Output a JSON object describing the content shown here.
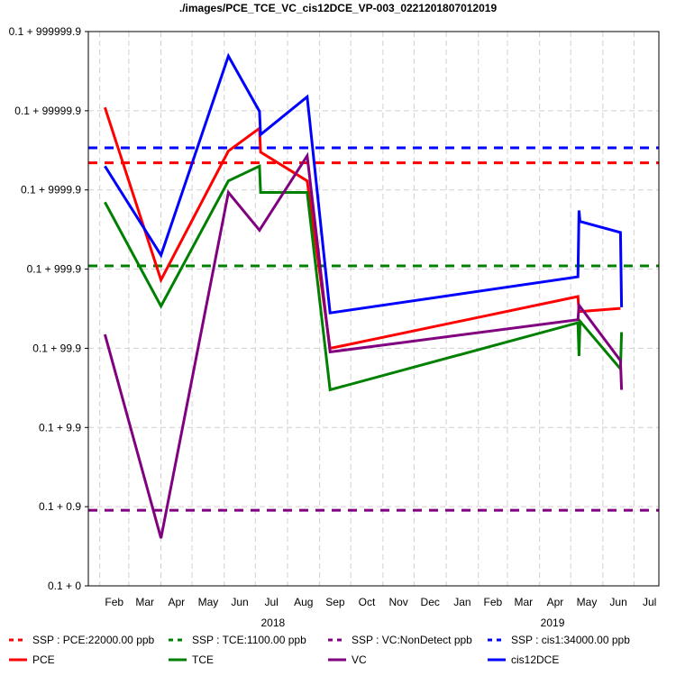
{
  "chart_data": {
    "type": "line",
    "title": "./images/PCE_TCE_VC_cis12DCE_VP-003_0221201807012019",
    "xlabel": "",
    "ylabel": "",
    "y_scale": "log10(value - 0.1)",
    "y_ticks": [
      "0.1 + 0",
      "0.1 + 0.9",
      "0.1 + 9.9",
      "0.1 + 99.9",
      "0.1 + 999.9",
      "0.1 + 9999.9",
      "0.1 + 99999.9",
      "0.1 + 999999.9"
    ],
    "x_ticks": [
      "Feb",
      "Mar",
      "Apr",
      "May",
      "Jun",
      "Jul",
      "Aug",
      "Sep",
      "Oct",
      "Nov",
      "Dec",
      "Jan",
      "Feb",
      "Mar",
      "Apr",
      "May",
      "Jun",
      "Jul"
    ],
    "x_year_labels": [
      "2018",
      "2019"
    ],
    "x_range": [
      "2018-01-21",
      "2019-07-25"
    ],
    "grid": true,
    "legend_position": "bottom",
    "reference_lines": [
      {
        "name": "SSP : PCE:22000.00 ppb",
        "value": 22000,
        "color": "#ff0000",
        "style": "dashed"
      },
      {
        "name": "SSP : TCE:1100.00 ppb",
        "value": 1100,
        "color": "#008000",
        "style": "dashed"
      },
      {
        "name": "SSP : VC:NonDetect ppb",
        "value": 1,
        "color": "#800080",
        "style": "dashed"
      },
      {
        "name": "SSP : cis1:34000.00 ppb",
        "value": 34000,
        "color": "#0000ff",
        "style": "dashed"
      }
    ],
    "series": [
      {
        "name": "PCE",
        "color": "#ff0000",
        "points": [
          [
            "2018-02-06",
            110000
          ],
          [
            "2018-04-01",
            730
          ],
          [
            "2018-06-05",
            31000
          ],
          [
            "2018-07-05",
            60000
          ],
          [
            "2018-07-06",
            30000
          ],
          [
            "2018-08-20",
            13000
          ],
          [
            "2018-09-11",
            100
          ],
          [
            "2019-05-08",
            450
          ],
          [
            "2019-05-09",
            290
          ],
          [
            "2019-06-18",
            320
          ]
        ]
      },
      {
        "name": "TCE",
        "color": "#008000",
        "points": [
          [
            "2018-02-06",
            7000
          ],
          [
            "2018-04-01",
            340
          ],
          [
            "2018-06-05",
            13000
          ],
          [
            "2018-07-05",
            20000
          ],
          [
            "2018-07-06",
            9300
          ],
          [
            "2018-08-20",
            9300
          ],
          [
            "2018-09-11",
            30
          ],
          [
            "2019-05-08",
            210
          ],
          [
            "2019-05-09",
            80
          ],
          [
            "2019-05-10",
            220
          ],
          [
            "2019-06-18",
            55
          ],
          [
            "2019-06-19",
            160
          ]
        ]
      },
      {
        "name": "VC",
        "color": "#800080",
        "points": [
          [
            "2018-02-06",
            150
          ],
          [
            "2018-04-01",
            0.5
          ],
          [
            "2018-06-05",
            9300
          ],
          [
            "2018-07-05",
            3100
          ],
          [
            "2018-08-20",
            27000
          ],
          [
            "2018-09-11",
            90
          ],
          [
            "2019-05-08",
            230
          ],
          [
            "2019-05-09",
            350
          ],
          [
            "2019-06-18",
            70
          ],
          [
            "2019-06-19",
            30
          ]
        ]
      },
      {
        "name": "cis12DCE",
        "color": "#0000ff",
        "points": [
          [
            "2018-02-06",
            20000
          ],
          [
            "2018-04-01",
            1500
          ],
          [
            "2018-06-05",
            490000
          ],
          [
            "2018-07-05",
            98000
          ],
          [
            "2018-07-06",
            50000
          ],
          [
            "2018-08-20",
            150000
          ],
          [
            "2018-09-11",
            280
          ],
          [
            "2019-05-08",
            800
          ],
          [
            "2019-05-09",
            5500
          ],
          [
            "2019-05-10",
            4000
          ],
          [
            "2019-06-18",
            2900
          ],
          [
            "2019-06-19",
            330
          ]
        ]
      }
    ]
  }
}
